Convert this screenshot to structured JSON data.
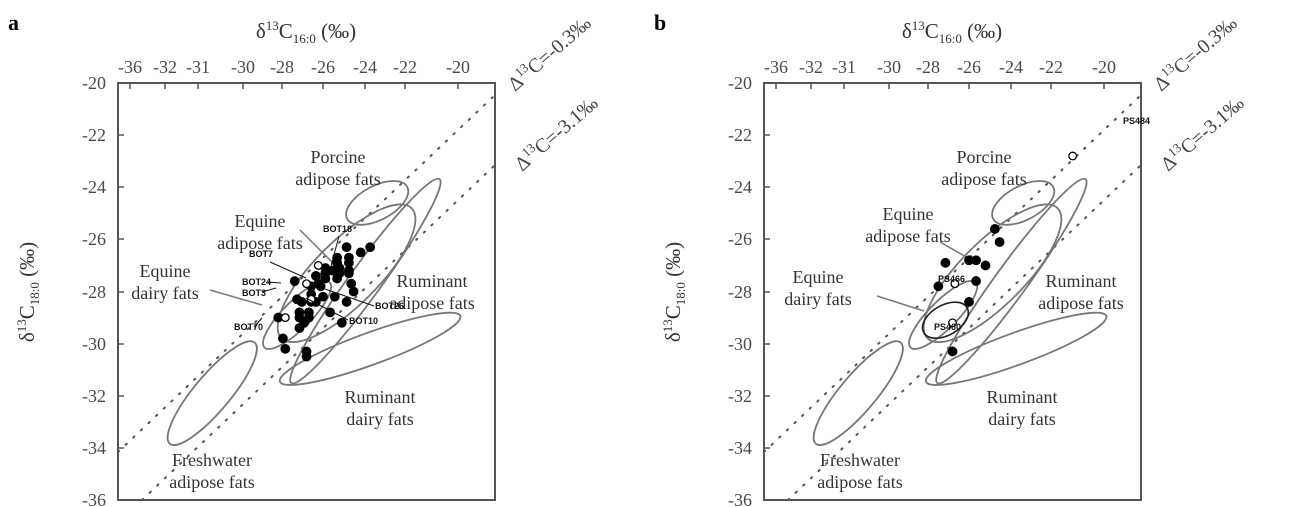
{
  "chart_data": [
    {
      "type": "scatter",
      "panel_letter": "a",
      "xlabel": {
        "main": "δ",
        "sup": "13",
        "core": "C",
        "sub": "16:0",
        "unit": " (‰)"
      },
      "ylabel": {
        "main": "δ",
        "sup": "13",
        "core": "C",
        "sub": "18:0",
        "unit": " (‰)"
      },
      "x_ticks": [
        "-36",
        "-32",
        "-31",
        "-30",
        "-28",
        "-26",
        "-24",
        "-22",
        "-20"
      ],
      "y_ticks": [
        "-20",
        "-22",
        "-24",
        "-26",
        "-28",
        "-30",
        "-32",
        "-34",
        "-36"
      ],
      "reference_lines": [
        {
          "label_prefix": "Δ",
          "label_sup": "13",
          "label_rest": "C=-0.3‰"
        },
        {
          "label_prefix": "Δ",
          "label_sup": "13",
          "label_rest": "C=-3.1‰"
        }
      ],
      "regions": [
        {
          "name": "Porcine adipose fats",
          "lines": [
            "Porcine",
            "adipose fats"
          ]
        },
        {
          "name": "Equine adipose fats",
          "lines": [
            "Equine",
            "adipose fats"
          ]
        },
        {
          "name": "Equine dairy fats",
          "lines": [
            "Equine",
            "dairy fats"
          ]
        },
        {
          "name": "Ruminant adipose fats",
          "lines": [
            "Ruminant",
            "adipose fats"
          ]
        },
        {
          "name": "Ruminant dairy fats",
          "lines": [
            "Ruminant",
            "dairy fats"
          ]
        },
        {
          "name": "Freshwater adipose fats",
          "lines": [
            "Freshwater",
            "adipose fats"
          ]
        }
      ],
      "sample_labels": [
        "BOT18",
        "BOT7",
        "BOT24",
        "BOT3",
        "BOT70",
        "BOT26",
        "BOT10"
      ],
      "series": [
        {
          "marker": "filled-circle",
          "points": [
            [
              -26.3,
              -26.3
            ],
            [
              -25.3,
              -26.3
            ],
            [
              -25.7,
              -26.5
            ],
            [
              -26.7,
              -26.7
            ],
            [
              -26.2,
              -26.7
            ],
            [
              -26.7,
              -26.9
            ],
            [
              -26.2,
              -26.9
            ],
            [
              -27.2,
              -27.1
            ],
            [
              -26.6,
              -27.1
            ],
            [
              -26.2,
              -27.2
            ],
            [
              -26.9,
              -27.2
            ],
            [
              -27.2,
              -27.3
            ],
            [
              -26.6,
              -27.3
            ],
            [
              -26.2,
              -27.3
            ],
            [
              -27.6,
              -27.4
            ],
            [
              -27.2,
              -27.5
            ],
            [
              -28.5,
              -27.6
            ],
            [
              -26.7,
              -27.5
            ],
            [
              -27.5,
              -27.7
            ],
            [
              -26.1,
              -27.7
            ],
            [
              -27.8,
              -27.8
            ],
            [
              -27.4,
              -27.8
            ],
            [
              -26.0,
              -28.0
            ],
            [
              -27.8,
              -28.1
            ],
            [
              -27.3,
              -28.2
            ],
            [
              -26.8,
              -28.2
            ],
            [
              -28.4,
              -28.3
            ],
            [
              -28.2,
              -28.4
            ],
            [
              -27.8,
              -28.4
            ],
            [
              -27.6,
              -28.4
            ],
            [
              -26.3,
              -28.4
            ],
            [
              -28.3,
              -28.8
            ],
            [
              -27.9,
              -28.8
            ],
            [
              -27.0,
              -28.8
            ],
            [
              -28.3,
              -29.0
            ],
            [
              -27.9,
              -29.0
            ],
            [
              -28.1,
              -29.2
            ],
            [
              -26.5,
              -29.2
            ],
            [
              -28.3,
              -29.4
            ],
            [
              -29.2,
              -29.0
            ],
            [
              -29.0,
              -29.8
            ],
            [
              -28.9,
              -30.2
            ],
            [
              -28.0,
              -30.3
            ],
            [
              -28.0,
              -30.5
            ]
          ]
        },
        {
          "marker": "open-circle",
          "points": [
            [
              -27.5,
              -27.0
            ],
            [
              -28.0,
              -27.7
            ],
            [
              -27.8,
              -28.3
            ],
            [
              -28.9,
              -29.0
            ]
          ]
        }
      ]
    },
    {
      "type": "scatter",
      "panel_letter": "b",
      "xlabel": {
        "main": "δ",
        "sup": "13",
        "core": "C",
        "sub": "16:0",
        "unit": " (‰)"
      },
      "ylabel": {
        "main": "δ",
        "sup": "13",
        "core": "C",
        "sub": "18:0",
        "unit": " (‰)"
      },
      "x_ticks": [
        "-36",
        "-32",
        "-31",
        "-30",
        "-28",
        "-26",
        "-24",
        "-22",
        "-20"
      ],
      "y_ticks": [
        "-20",
        "-22",
        "-24",
        "-26",
        "-28",
        "-30",
        "-32",
        "-34",
        "-36"
      ],
      "reference_lines": [
        {
          "label_prefix": "Δ",
          "label_sup": "13",
          "label_rest": "C=-0.3‰"
        },
        {
          "label_prefix": "Δ",
          "label_sup": "13",
          "label_rest": "C=-3.1‰"
        }
      ],
      "regions": [
        {
          "name": "Porcine adipose fats",
          "lines": [
            "Porcine",
            "adipose fats"
          ]
        },
        {
          "name": "Equine adipose fats",
          "lines": [
            "Equine",
            "adipose fats"
          ]
        },
        {
          "name": "Equine dairy fats",
          "lines": [
            "Equine",
            "dairy fats"
          ]
        },
        {
          "name": "Ruminant adipose fats",
          "lines": [
            "Ruminant",
            "adipose fats"
          ]
        },
        {
          "name": "Ruminant dairy fats",
          "lines": [
            "Ruminant",
            "dairy fats"
          ]
        },
        {
          "name": "Freshwater adipose fats",
          "lines": [
            "Freshwater",
            "adipose fats"
          ]
        }
      ],
      "sample_labels": [
        "PS484",
        "PS466",
        "PS460"
      ],
      "series": [
        {
          "marker": "filled-circle",
          "points": [
            [
              -26.2,
              -25.6
            ],
            [
              -26.0,
              -26.1
            ],
            [
              -27.3,
              -26.8
            ],
            [
              -27.0,
              -26.8
            ],
            [
              -28.3,
              -26.9
            ],
            [
              -26.6,
              -27.0
            ],
            [
              -27.0,
              -27.6
            ],
            [
              -28.6,
              -27.8
            ],
            [
              -27.3,
              -28.4
            ],
            [
              -28.0,
              -30.3
            ]
          ]
        },
        {
          "marker": "open-circle",
          "points": [
            [
              -22.9,
              -22.8
            ],
            [
              -27.9,
              -27.7
            ],
            [
              -28.0,
              -29.2
            ]
          ]
        }
      ]
    }
  ]
}
